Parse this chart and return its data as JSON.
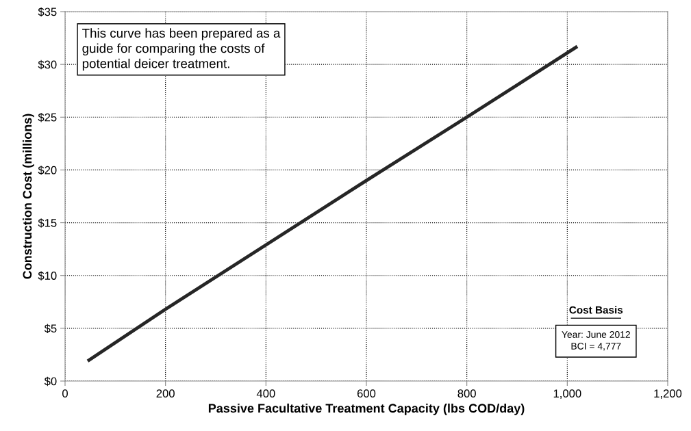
{
  "chart_data": {
    "type": "line",
    "xlabel": "Passive Facultative Treatment Capacity (lbs COD/day)",
    "ylabel": "Construction Cost (millions)",
    "series": [
      {
        "color": "#262626",
        "x": [
          45,
          200,
          400,
          600,
          800,
          1020
        ],
        "values": [
          1.9,
          6.8,
          12.9,
          19.0,
          25.0,
          31.7
        ]
      }
    ],
    "xlim": [
      0,
      1200
    ],
    "xticks": [
      0,
      200,
      400,
      {
        "value": 600,
        "label": "600"
      },
      {
        "value": 800,
        "label": "800"
      },
      {
        "value": 1000,
        "label": "1,000"
      },
      {
        "value": 1200,
        "label": "1,200"
      }
    ],
    "ylim": [
      0,
      35
    ],
    "yticks": [
      {
        "value": 0,
        "label": "$0"
      },
      {
        "value": 5,
        "label": "$5"
      },
      {
        "value": 10,
        "label": "$10"
      },
      {
        "value": 15,
        "label": "$15"
      },
      {
        "value": 20,
        "label": "$20"
      },
      {
        "value": 25,
        "label": "$25"
      },
      {
        "value": 30,
        "label": "$30"
      },
      {
        "value": 35,
        "label": "$35"
      }
    ],
    "grid": true,
    "line_style": "solid",
    "marker": "none",
    "annotations": [
      "This curve has been prepared as a\nguide for comparing the costs of\npotential deicer treatment.",
      "Cost Basis",
      "Year: June 2012\nBCI = 4,777"
    ]
  }
}
